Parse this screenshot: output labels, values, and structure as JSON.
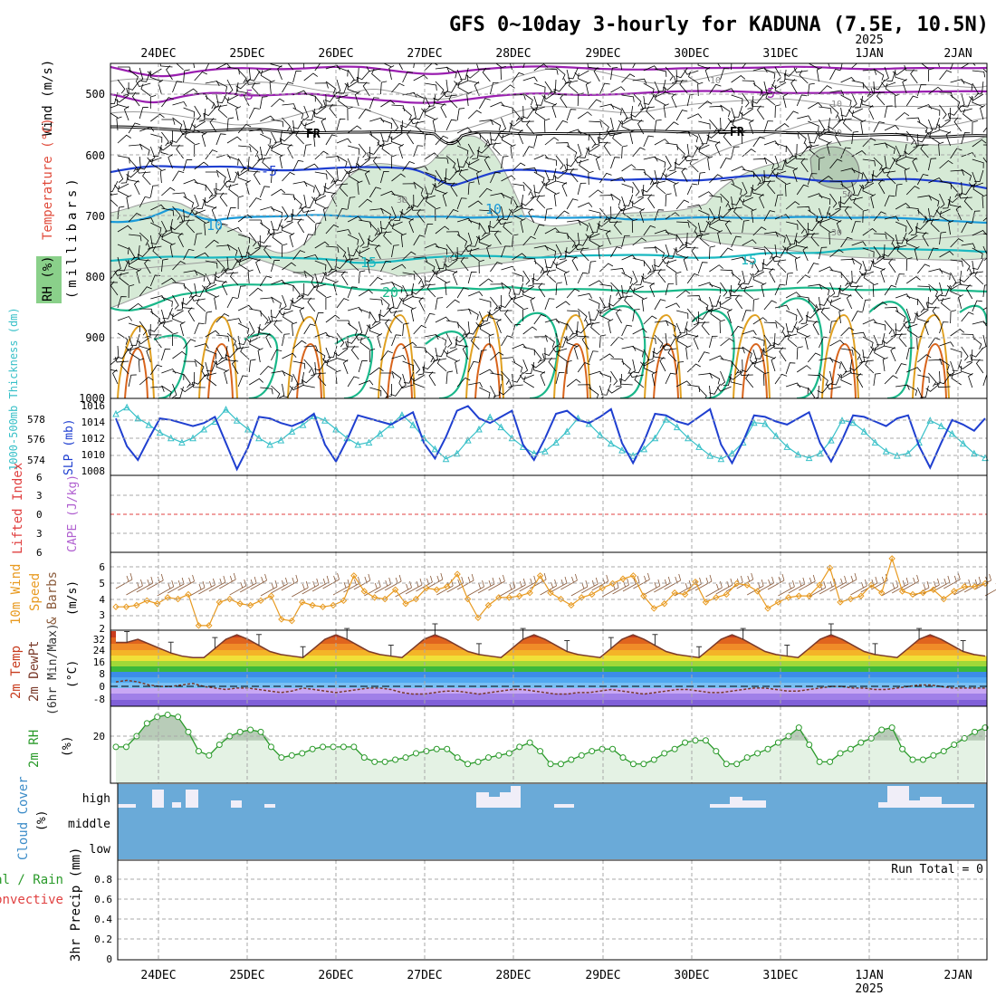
{
  "title": "GFS 0~10day 3-hourly for KADUNA (7.5E, 10.5N)",
  "date_ticks": [
    "24DEC",
    "25DEC",
    "26DEC",
    "27DEC",
    "28DEC",
    "29DEC",
    "30DEC",
    "31DEC",
    "1JAN",
    "2JAN"
  ],
  "year_label": "2025",
  "colors": {
    "grid": "#a8a8a8",
    "frame": "#000000",
    "rh_fill": "#d6ead6",
    "rh_fill_dark": "#b4cbb4",
    "wind_barb": "#000000"
  },
  "panels": {
    "upper_air": {
      "left_labels": {
        "wind": "Wind (m/s)",
        "temperature": "Temperature (°C)",
        "rh": "RH (%)",
        "pressure": "(millibars)"
      },
      "y_ticks": [
        "500",
        "600",
        "700",
        "800",
        "900",
        "1000"
      ],
      "isotherm_labels": [
        "-5",
        "-5",
        "FR",
        "FR",
        "-5",
        "10",
        "10",
        "15",
        "15",
        "20"
      ],
      "rh_labels": [
        "10",
        "10",
        "30",
        "30",
        "30",
        "30",
        "50"
      ]
    },
    "slp_thickness": {
      "left_labels": {
        "thickness": "1000-500mb Thickness (dm)",
        "slp": "SLP (mb)"
      },
      "thickness_ticks": [
        "578",
        "576",
        "574"
      ],
      "slp_ticks": [
        "1016",
        "1014",
        "1012",
        "1010",
        "1008"
      ]
    },
    "stability": {
      "left_labels": {
        "lifted_index": "Lifted Index",
        "cape": "CAPE (J/kg)"
      },
      "y_ticks": [
        "6",
        "3",
        "0",
        "3",
        "6"
      ]
    },
    "wind10m": {
      "left_labels": {
        "title": "10m Wind",
        "speed": "Speed",
        "barbs": "& Barbs",
        "unit": "(m/s)"
      },
      "y_ticks": [
        "6",
        "5",
        "4",
        "3",
        "2"
      ]
    },
    "temperature2m": {
      "left_labels": {
        "temp": "2m Temp",
        "dewpt": "2m DewPt",
        "minmax": "(6hr Min/Max)",
        "unit": "(°C)"
      },
      "y_ticks": [
        "32",
        "24",
        "16",
        "8",
        "0",
        "-8"
      ]
    },
    "rh2m": {
      "left_labels": {
        "title": "2m RH",
        "unit": "(%)"
      },
      "y_ticks": [
        "20"
      ]
    },
    "cloud": {
      "left_labels": {
        "title": "Cloud Cover",
        "unit": "(%)"
      },
      "level_labels": [
        "high",
        "middle",
        "low"
      ]
    },
    "precip": {
      "left_labels": {
        "total": "Total / Rain",
        "convective": "Convective",
        "title": "3hr Precip (mm)"
      },
      "y_ticks": [
        "0.8",
        "0.6",
        "0.4",
        "0.2",
        "0"
      ],
      "run_total": "Run Total = 0"
    }
  },
  "chart_data": [
    {
      "type": "line",
      "title": "GFS 0~10day 3-hourly for KADUNA (7.5E, 10.5N)",
      "panel": "upper_air",
      "ylabel": "(millibars)",
      "ylim": [
        450,
        1000
      ],
      "series": [
        {
          "name": "Temperature",
          "contour_levels_c": [
            -5,
            0,
            5,
            10,
            15,
            20
          ]
        },
        {
          "name": "RH",
          "contour_levels_pct": [
            10,
            30,
            50
          ]
        }
      ]
    },
    {
      "type": "line",
      "panel": "slp_thickness",
      "series": [
        {
          "name": "1000-500mb Thickness (dm)",
          "values": [
            578.2,
            578.8,
            577.8,
            577.2,
            576.5,
            576.0,
            575.6,
            576.0,
            576.8,
            577.5,
            578.6,
            577.6,
            576.8,
            576.0,
            575.4,
            575.8,
            576.6,
            577.2,
            578.0,
            577.6,
            576.8,
            576.0,
            575.4,
            575.6,
            576.4,
            577.2,
            578.1,
            577.2,
            576.0,
            575.0,
            574.1,
            574.6,
            575.8,
            576.8,
            577.9,
            577.0,
            576.0,
            575.2,
            574.6,
            574.8,
            575.6,
            576.6,
            577.8,
            577.3,
            576.3,
            575.5,
            574.9,
            574.4,
            575.0,
            576.0,
            577.7,
            577.0,
            576.0,
            575.2,
            574.4,
            574.1,
            574.6,
            575.6,
            577.4,
            577.3,
            576.2,
            575.2,
            574.5,
            574.2,
            574.6,
            575.8,
            577.6,
            577.4,
            576.6,
            575.6,
            574.8,
            574.4,
            574.6,
            575.6,
            577.6,
            577.1,
            576.4,
            575.5,
            574.6,
            574.2
          ]
        },
        {
          "name": "SLP (mb)",
          "values": [
            1014.4,
            1010.8,
            1009.0,
            1011.8,
            1014.4,
            1014.2,
            1013.8,
            1013.4,
            1013.8,
            1014.6,
            1011.2,
            1007.8,
            1010.6,
            1014.6,
            1014.4,
            1013.8,
            1013.4,
            1014.0,
            1015.0,
            1011.0,
            1008.8,
            1011.6,
            1014.8,
            1014.4,
            1014.0,
            1013.6,
            1014.4,
            1015.2,
            1011.2,
            1009.2,
            1012.0,
            1015.4,
            1016.0,
            1014.4,
            1013.8,
            1014.6,
            1015.4,
            1011.0,
            1009.0,
            1011.8,
            1015.0,
            1015.4,
            1014.2,
            1013.8,
            1014.6,
            1015.6,
            1011.2,
            1008.6,
            1011.4,
            1015.0,
            1014.8,
            1014.0,
            1013.6,
            1014.6,
            1015.6,
            1011.0,
            1008.6,
            1011.4,
            1014.8,
            1014.6,
            1014.0,
            1013.6,
            1014.4,
            1015.2,
            1011.2,
            1008.8,
            1011.6,
            1014.8,
            1014.6,
            1014.0,
            1013.4,
            1014.4,
            1014.8,
            1010.8,
            1008.0,
            1011.2,
            1014.2,
            1013.6,
            1012.8,
            1014.4
          ]
        }
      ]
    },
    {
      "type": "line",
      "panel": "stability",
      "series": [
        {
          "name": "Lifted Index",
          "values": []
        },
        {
          "name": "CAPE (J/kg)",
          "values": []
        }
      ]
    },
    {
      "type": "line",
      "panel": "wind10m",
      "ylabel": "(m/s)",
      "ylim": [
        2,
        7
      ],
      "series": [
        {
          "name": "Speed",
          "values": [
            3.5,
            3.5,
            3.6,
            3.9,
            3.7,
            4.1,
            4.0,
            4.3,
            2.3,
            2.3,
            3.8,
            4.0,
            3.7,
            3.6,
            3.9,
            4.2,
            2.7,
            2.6,
            3.8,
            3.6,
            3.5,
            3.6,
            3.9,
            5.5,
            4.5,
            4.1,
            4.0,
            4.6,
            3.7,
            4.0,
            4.7,
            4.6,
            4.8,
            5.6,
            4.0,
            2.8,
            3.6,
            4.1,
            4.1,
            4.2,
            4.4,
            5.5,
            4.4,
            4.0,
            3.6,
            4.1,
            4.3,
            4.7,
            5.0,
            5.3,
            5.5,
            4.2,
            3.4,
            3.7,
            4.4,
            4.3,
            5.1,
            3.8,
            4.1,
            4.3,
            5.0,
            4.9,
            4.5,
            3.4,
            3.8,
            4.1,
            4.2,
            4.2,
            4.9,
            6.0,
            3.8,
            4.0,
            4.2,
            4.9,
            4.4,
            6.6,
            4.5,
            4.3,
            4.4,
            4.6,
            4.0,
            4.5,
            4.8,
            4.8,
            5.0
          ]
        }
      ]
    },
    {
      "type": "area",
      "panel": "temperature2m",
      "ylabel": "(°C)",
      "ylim": [
        -14,
        36
      ],
      "series": [
        {
          "name": "2m Temp",
          "values": [
            28,
            28,
            30,
            27,
            24,
            21,
            19,
            18,
            18,
            24,
            30,
            33,
            30,
            26,
            22,
            20,
            19,
            18,
            24,
            30,
            33,
            30,
            26,
            22,
            20,
            19,
            18,
            24,
            30,
            33,
            30,
            26,
            22,
            20,
            19,
            18,
            24,
            30,
            33,
            30,
            26,
            22,
            20,
            19,
            18,
            24,
            30,
            33,
            30,
            26,
            22,
            20,
            19,
            18,
            24,
            30,
            33,
            30,
            26,
            22,
            20,
            19,
            18,
            24,
            30,
            33,
            30,
            26,
            22,
            20,
            19,
            18,
            24,
            30,
            33,
            30,
            26,
            22,
            20,
            19
          ]
        },
        {
          "name": "2m DewPt",
          "values": [
            2,
            3,
            2,
            0,
            -1,
            -1,
            0,
            1,
            -1,
            -2,
            -3,
            -2,
            -2,
            -3,
            -4,
            -5,
            -4,
            -2,
            -3,
            -4,
            -5,
            -4,
            -3,
            -2,
            -2,
            -3,
            -5,
            -6,
            -6,
            -5,
            -4,
            -4,
            -5,
            -6,
            -5,
            -4,
            -3,
            -3,
            -4,
            -5,
            -6,
            -6,
            -5,
            -5,
            -4,
            -3,
            -4,
            -5,
            -6,
            -5,
            -4,
            -3,
            -3,
            -4,
            -5,
            -5,
            -4,
            -3,
            -2,
            -2,
            -3,
            -4,
            -4,
            -3,
            -2,
            -1,
            -1,
            -2,
            -2,
            -3,
            -3,
            -2,
            -1,
            0,
            0,
            -1,
            -2,
            -2,
            -2,
            -2
          ]
        }
      ]
    },
    {
      "type": "area",
      "panel": "rh2m",
      "ylabel": "(%)",
      "ylim": [
        0,
        36
      ],
      "series": [
        {
          "name": "2m RH",
          "values": [
            17,
            17,
            22,
            28,
            31,
            32,
            31,
            24,
            15,
            13,
            18,
            22,
            24,
            25,
            24,
            17,
            12,
            13,
            14,
            16,
            17,
            17,
            17,
            17,
            12,
            10,
            10,
            11,
            12,
            14,
            15,
            16,
            16,
            12,
            9,
            10,
            12,
            13,
            14,
            17,
            19,
            15,
            9,
            9,
            11,
            13,
            15,
            16,
            16,
            12,
            9,
            9,
            11,
            14,
            16,
            19,
            20,
            20,
            15,
            9,
            9,
            12,
            14,
            16,
            19,
            22,
            26,
            18,
            10,
            10,
            14,
            16,
            19,
            21,
            25,
            26,
            16,
            11,
            11,
            13,
            15,
            18,
            21,
            24,
            26
          ]
        }
      ]
    },
    {
      "type": "bar",
      "panel": "cloud",
      "ylabel": "(%)",
      "series": [
        {
          "name": "high",
          "values": [
            0,
            0,
            0,
            0,
            0,
            0,
            0,
            0,
            0,
            0,
            0,
            0,
            0,
            0,
            0,
            0,
            0,
            0,
            0,
            0,
            0,
            0,
            0,
            0,
            0,
            0,
            0,
            0,
            0,
            0,
            0,
            0,
            0,
            0,
            0,
            0,
            0,
            0,
            0,
            0,
            0,
            0,
            0,
            0,
            0,
            0,
            0,
            0,
            0,
            0,
            0,
            0,
            0,
            0,
            0,
            0,
            0,
            0,
            0,
            0,
            0,
            0,
            0,
            0,
            0,
            0,
            0,
            0,
            0,
            0,
            0,
            0,
            0,
            0,
            0,
            0,
            0,
            0,
            0,
            0
          ]
        },
        {
          "name": "middle",
          "values": []
        },
        {
          "name": "low",
          "values": []
        }
      ]
    },
    {
      "type": "bar",
      "panel": "precip",
      "ylabel": "3hr Precip (mm)",
      "ylim": [
        0,
        1
      ],
      "series": [
        {
          "name": "Total / Rain",
          "values": []
        },
        {
          "name": "Convective",
          "values": []
        }
      ]
    }
  ]
}
